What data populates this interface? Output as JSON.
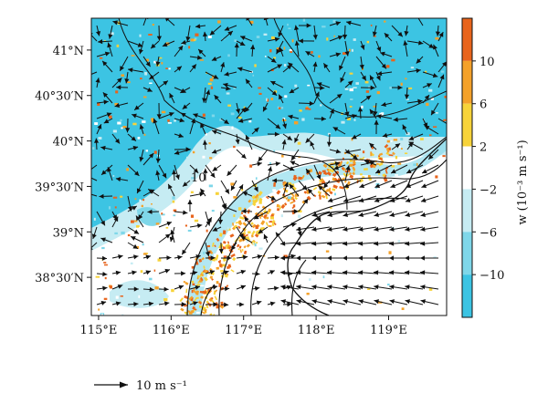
{
  "chart_data": {
    "type": "heatmap",
    "title": "",
    "xlabel": "",
    "ylabel": "",
    "xlim": [
      114.9,
      119.8
    ],
    "ylim": [
      38.08,
      41.35
    ],
    "x_ticks": [
      {
        "value": 115,
        "label": "115°E"
      },
      {
        "value": 116,
        "label": "116°E"
      },
      {
        "value": 117,
        "label": "117°E"
      },
      {
        "value": 118,
        "label": "118°E"
      },
      {
        "value": 119,
        "label": "119°E"
      }
    ],
    "y_ticks": [
      {
        "value": 38.5,
        "label": "38°30′N"
      },
      {
        "value": 39.0,
        "label": "39°N"
      },
      {
        "value": 39.5,
        "label": "39°30′N"
      },
      {
        "value": 40.0,
        "label": "40°N"
      },
      {
        "value": 40.5,
        "label": "40°30′N"
      },
      {
        "value": 41.0,
        "label": "41°N"
      }
    ],
    "contour_label": "10",
    "colorbar": {
      "label": "w (10⁻³ m s⁻¹)",
      "levels": [
        {
          "from": 10,
          "to": 14,
          "color": "#e8641c"
        },
        {
          "from": 6,
          "to": 10,
          "color": "#f4a12a"
        },
        {
          "from": 2,
          "to": 6,
          "color": "#f7d33a"
        },
        {
          "from": -2,
          "to": 2,
          "color": "#ffffff"
        },
        {
          "from": -6,
          "to": -2,
          "color": "#c6ecf3"
        },
        {
          "from": -10,
          "to": -6,
          "color": "#7fd7e9"
        },
        {
          "from": -14,
          "to": -10,
          "color": "#3cc4e3"
        }
      ],
      "tick_labels": [
        {
          "value": 10,
          "label": "10"
        },
        {
          "value": 6,
          "label": "6"
        },
        {
          "value": 2,
          "label": "2"
        },
        {
          "value": -2,
          "label": "−2"
        },
        {
          "value": -6,
          "label": "−6"
        },
        {
          "value": -10,
          "label": "−10"
        }
      ]
    },
    "reference_vector": {
      "label": "10 m s⁻¹",
      "speed": 10
    }
  }
}
